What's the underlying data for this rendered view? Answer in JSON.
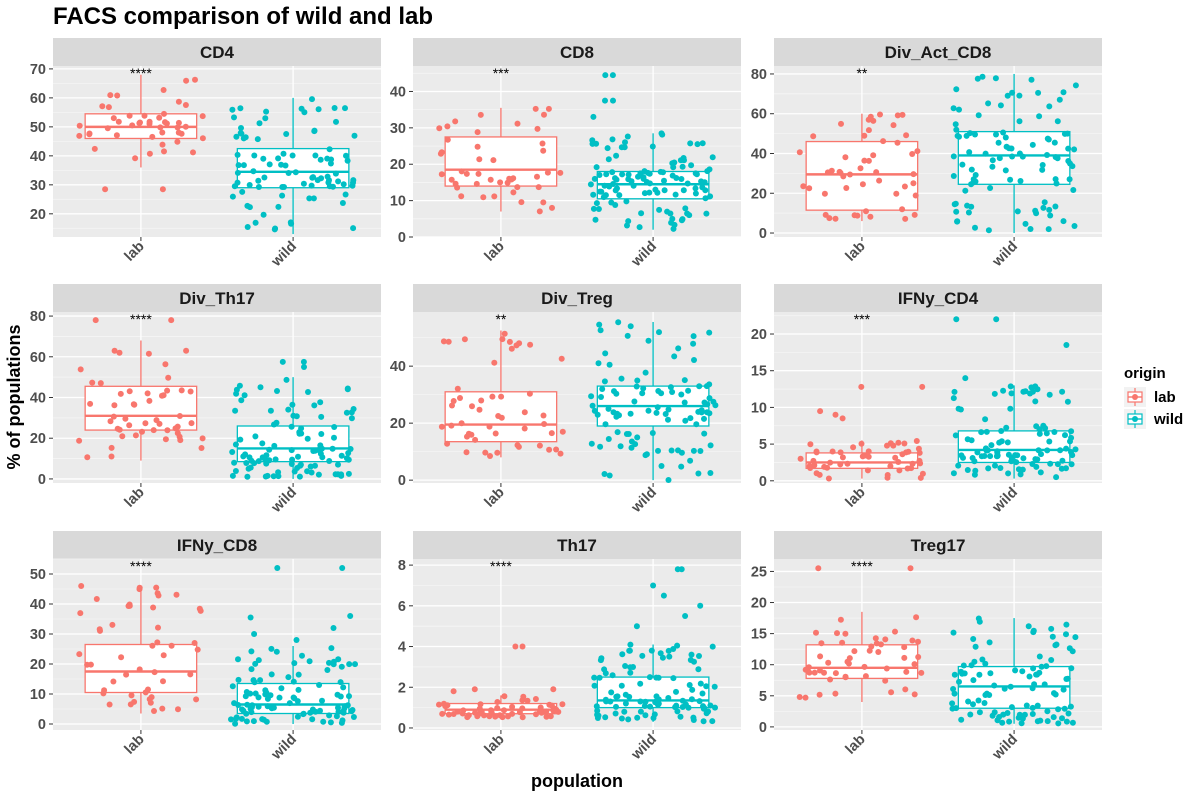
{
  "chart_data": {
    "type": "box",
    "title": "FACS comparison of wild and lab",
    "xlabel": "population",
    "ylabel": "% of populations",
    "categories": [
      "lab",
      "wild"
    ],
    "legend": {
      "title": "origin",
      "position": "right",
      "entries": [
        {
          "label": "lab",
          "color": "#F8766D"
        },
        {
          "label": "wild",
          "color": "#00BFC4"
        }
      ]
    },
    "grid": true,
    "panels": [
      {
        "name": "CD4",
        "ylim": [
          12,
          71
        ],
        "yticks": [
          20,
          30,
          40,
          50,
          60,
          70
        ],
        "sig": "****",
        "lab": {
          "min": 36,
          "q1": 46,
          "median": 50,
          "q3": 54.5,
          "max": 68,
          "n": 45,
          "outliers": [
            28.5,
            28.5
          ]
        },
        "wild": {
          "min": 13,
          "q1": 29,
          "median": 34.5,
          "q3": 42.5,
          "max": 60,
          "n": 90,
          "outliers": []
        }
      },
      {
        "name": "CD8",
        "ylim": [
          0,
          47
        ],
        "yticks": [
          0,
          10,
          20,
          30,
          40
        ],
        "sig": "***",
        "lab": {
          "min": 7,
          "q1": 14,
          "median": 18.5,
          "q3": 27.5,
          "max": 35.5,
          "n": 45,
          "outliers": []
        },
        "wild": {
          "min": 2,
          "q1": 10.5,
          "median": 14.5,
          "q3": 18,
          "max": 28.5,
          "n": 110,
          "outliers": [
            33,
            37.5,
            37.5,
            44.5,
            44.5
          ]
        }
      },
      {
        "name": "Div_Act_CD8",
        "ylim": [
          -2,
          84
        ],
        "yticks": [
          0,
          20,
          40,
          60,
          80
        ],
        "sig": "**",
        "lab": {
          "min": 6,
          "q1": 11.5,
          "median": 29.5,
          "q3": 46,
          "max": 60,
          "n": 50,
          "outliers": []
        },
        "wild": {
          "min": 0,
          "q1": 24.5,
          "median": 39,
          "q3": 51,
          "max": 80,
          "n": 100,
          "outliers": []
        }
      },
      {
        "name": "Div_Th17",
        "ylim": [
          -2,
          82
        ],
        "yticks": [
          0,
          20,
          40,
          60,
          80
        ],
        "sig": "****",
        "lab": {
          "min": 9,
          "q1": 24,
          "median": 31,
          "q3": 45.5,
          "max": 68,
          "n": 50,
          "outliers": [
            78,
            78
          ]
        },
        "wild": {
          "min": 0,
          "q1": 8.5,
          "median": 15,
          "q3": 26,
          "max": 50,
          "n": 100,
          "outliers": [
            55,
            57.5,
            57.5
          ]
        }
      },
      {
        "name": "Div_Treg",
        "ylim": [
          -1,
          59
        ],
        "yticks": [
          0,
          20,
          40
        ],
        "sig": "**",
        "lab": {
          "min": 8,
          "q1": 13.5,
          "median": 19.5,
          "q3": 31,
          "max": 52.5,
          "n": 50,
          "outliers": []
        },
        "wild": {
          "min": 0,
          "q1": 19,
          "median": 26,
          "q3": 33,
          "max": 55.5,
          "n": 100,
          "outliers": []
        }
      },
      {
        "name": "IFNy_CD4",
        "ylim": [
          -0.3,
          23
        ],
        "yticks": [
          0,
          5,
          10,
          15,
          20
        ],
        "sig": "***",
        "lab": {
          "min": 0.3,
          "q1": 1.7,
          "median": 2.5,
          "q3": 3.8,
          "max": 5.5,
          "n": 50,
          "outliers": [
            8.5,
            9,
            9.5,
            12.8,
            12.8
          ]
        },
        "wild": {
          "min": 0.3,
          "q1": 2.5,
          "median": 4.2,
          "q3": 6.8,
          "max": 13,
          "n": 100,
          "outliers": [
            14,
            18.5,
            22,
            22
          ]
        }
      },
      {
        "name": "IFNy_CD8",
        "ylim": [
          -2,
          55
        ],
        "yticks": [
          0,
          10,
          20,
          30,
          40,
          50
        ],
        "sig": "****",
        "lab": {
          "min": 3.5,
          "q1": 10.5,
          "median": 17.5,
          "q3": 26.5,
          "max": 46,
          "n": 50,
          "outliers": []
        },
        "wild": {
          "min": 0,
          "q1": 3.5,
          "median": 6.5,
          "q3": 13.5,
          "max": 26,
          "n": 100,
          "outliers": [
            28,
            30,
            32,
            35.5,
            36,
            52,
            52
          ]
        }
      },
      {
        "name": "Th17",
        "ylim": [
          -0.1,
          8.3
        ],
        "yticks": [
          0,
          2,
          4,
          6,
          8
        ],
        "sig": "****",
        "lab": {
          "min": 0.5,
          "q1": 0.7,
          "median": 0.9,
          "q3": 1.2,
          "max": 1.6,
          "n": 55,
          "outliers": [
            1.8,
            1.9,
            1.9,
            4,
            4
          ]
        },
        "wild": {
          "min": 0.3,
          "q1": 1.0,
          "median": 1.35,
          "q3": 2.5,
          "max": 4.1,
          "n": 100,
          "outliers": [
            5,
            5.5,
            6,
            6.5,
            7,
            7.8,
            7.8
          ]
        }
      },
      {
        "name": "Treg17",
        "ylim": [
          -0.5,
          27
        ],
        "yticks": [
          0,
          5,
          10,
          15,
          20,
          25
        ],
        "sig": "****",
        "lab": {
          "min": 4,
          "q1": 7.8,
          "median": 9.5,
          "q3": 13.2,
          "max": 18.5,
          "n": 50,
          "outliers": [
            25.5,
            25.5
          ]
        },
        "wild": {
          "min": 0.5,
          "q1": 3,
          "median": 6.5,
          "q3": 9.7,
          "max": 17.5,
          "n": 100,
          "outliers": []
        }
      }
    ]
  }
}
